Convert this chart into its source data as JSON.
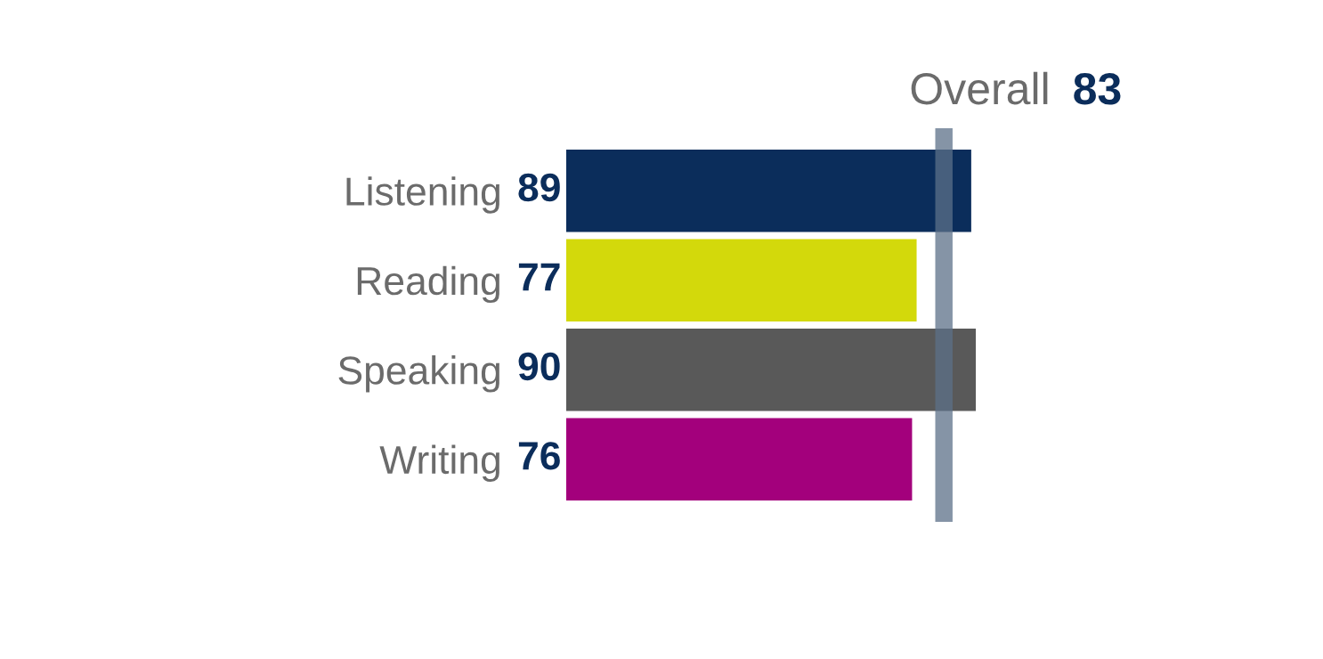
{
  "chart_data": {
    "type": "bar",
    "orientation": "horizontal",
    "categories": [
      "Listening",
      "Reading",
      "Speaking",
      "Writing"
    ],
    "values": [
      89,
      77,
      90,
      76
    ],
    "colors": [
      "#0b2d5b",
      "#d3d90b",
      "#595959",
      "#a3007c"
    ],
    "data_labels": true,
    "ref_lines": [
      {
        "axis": "x",
        "value": 83,
        "label": "Overall",
        "color": "#5c7088"
      }
    ],
    "annotations": [
      "83"
    ]
  }
}
